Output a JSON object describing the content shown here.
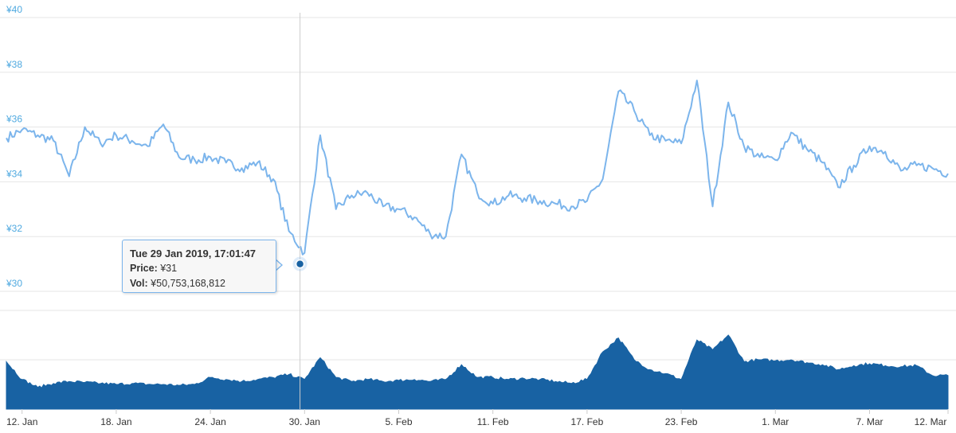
{
  "chart_data": [
    {
      "type": "line",
      "title": "",
      "xlabel": "",
      "ylabel": "",
      "y_ticks": [
        "¥30",
        "¥32",
        "¥34",
        "¥36",
        "¥38",
        "¥40"
      ],
      "ylim": [
        30,
        40
      ],
      "x_ticks": [
        "12. Jan",
        "18. Jan",
        "24. Jan",
        "30. Jan",
        "5. Feb",
        "11. Feb",
        "17. Feb",
        "23. Feb",
        "1. Mar",
        "7. Mar",
        "12. Mar"
      ],
      "x_range": [
        "2019-01-11",
        "2019-03-12"
      ],
      "grid": true,
      "line_color": "#7cb5ec",
      "series": [
        {
          "name": "Price",
          "x": [
            "2019-01-11",
            "2019-01-12",
            "2019-01-13",
            "2019-01-14",
            "2019-01-15",
            "2019-01-16",
            "2019-01-17",
            "2019-01-18",
            "2019-01-19",
            "2019-01-20",
            "2019-01-21",
            "2019-01-22",
            "2019-01-23",
            "2019-01-24",
            "2019-01-25",
            "2019-01-26",
            "2019-01-27",
            "2019-01-28",
            "2019-01-29",
            "2019-01-30",
            "2019-01-31",
            "2019-02-01",
            "2019-02-02",
            "2019-02-03",
            "2019-02-04",
            "2019-02-05",
            "2019-02-06",
            "2019-02-07",
            "2019-02-08",
            "2019-02-09",
            "2019-02-10",
            "2019-02-11",
            "2019-02-12",
            "2019-02-13",
            "2019-02-14",
            "2019-02-15",
            "2019-02-16",
            "2019-02-17",
            "2019-02-18",
            "2019-02-19",
            "2019-02-20",
            "2019-02-21",
            "2019-02-22",
            "2019-02-23",
            "2019-02-24",
            "2019-02-25",
            "2019-02-26",
            "2019-02-27",
            "2019-02-28",
            "2019-03-01",
            "2019-03-02",
            "2019-03-03",
            "2019-03-04",
            "2019-03-05",
            "2019-03-06",
            "2019-03-07",
            "2019-03-08",
            "2019-03-09",
            "2019-03-10",
            "2019-03-11",
            "2019-03-12"
          ],
          "values": [
            35.6,
            35.9,
            35.7,
            35.5,
            34.2,
            36.0,
            35.4,
            35.7,
            35.5,
            35.3,
            36.1,
            34.9,
            34.8,
            34.9,
            34.7,
            34.5,
            34.7,
            34.1,
            32.2,
            31.4,
            35.7,
            33.0,
            33.5,
            33.6,
            33.1,
            33.0,
            32.7,
            32.1,
            32.0,
            35.0,
            33.6,
            33.2,
            33.5,
            33.4,
            33.3,
            33.2,
            33.1,
            33.3,
            34.1,
            37.3,
            36.6,
            35.7,
            35.5,
            35.4,
            37.7,
            33.1,
            36.9,
            35.3,
            34.9,
            34.8,
            35.8,
            35.2,
            34.7,
            33.8,
            34.6,
            35.3,
            35.1,
            34.4,
            34.6,
            34.5,
            34.3
          ]
        }
      ],
      "tooltip": {
        "title": "Tue 29 Jan 2019, 17:01:47",
        "price_label": "Price:",
        "price_value": "¥31",
        "vol_label": "Vol:",
        "vol_value": "¥50,753,168,812",
        "x": "2019-01-29T17:01:47",
        "y": 31
      }
    },
    {
      "type": "area",
      "title": "",
      "xlabel": "",
      "ylabel": "",
      "ylim": [
        0,
        100
      ],
      "grid": true,
      "fill_color": "#1862a3",
      "series": [
        {
          "name": "Vol",
          "x": [
            "2019-01-11",
            "2019-01-12",
            "2019-01-13",
            "2019-01-14",
            "2019-01-15",
            "2019-01-16",
            "2019-01-17",
            "2019-01-18",
            "2019-01-19",
            "2019-01-20",
            "2019-01-21",
            "2019-01-22",
            "2019-01-23",
            "2019-01-24",
            "2019-01-25",
            "2019-01-26",
            "2019-01-27",
            "2019-01-28",
            "2019-01-29",
            "2019-01-30",
            "2019-01-31",
            "2019-02-01",
            "2019-02-02",
            "2019-02-03",
            "2019-02-04",
            "2019-02-05",
            "2019-02-06",
            "2019-02-07",
            "2019-02-08",
            "2019-02-09",
            "2019-02-10",
            "2019-02-11",
            "2019-02-12",
            "2019-02-13",
            "2019-02-14",
            "2019-02-15",
            "2019-02-16",
            "2019-02-17",
            "2019-02-18",
            "2019-02-19",
            "2019-02-20",
            "2019-02-21",
            "2019-02-22",
            "2019-02-23",
            "2019-02-24",
            "2019-02-25",
            "2019-02-26",
            "2019-02-27",
            "2019-02-28",
            "2019-03-01",
            "2019-03-02",
            "2019-03-03",
            "2019-03-04",
            "2019-03-05",
            "2019-03-06",
            "2019-03-07",
            "2019-03-08",
            "2019-03-09",
            "2019-03-10",
            "2019-03-11",
            "2019-03-12"
          ],
          "values": [
            48,
            30,
            22,
            26,
            28,
            27,
            26,
            25,
            26,
            25,
            25,
            24,
            25,
            32,
            30,
            28,
            30,
            32,
            35,
            30,
            52,
            32,
            28,
            30,
            28,
            29,
            30,
            28,
            30,
            45,
            32,
            32,
            30,
            31,
            30,
            28,
            26,
            30,
            58,
            72,
            50,
            40,
            36,
            30,
            70,
            60,
            75,
            48,
            50,
            49,
            50,
            47,
            45,
            40,
            44,
            46,
            44,
            43,
            44,
            34,
            34
          ]
        }
      ]
    }
  ]
}
